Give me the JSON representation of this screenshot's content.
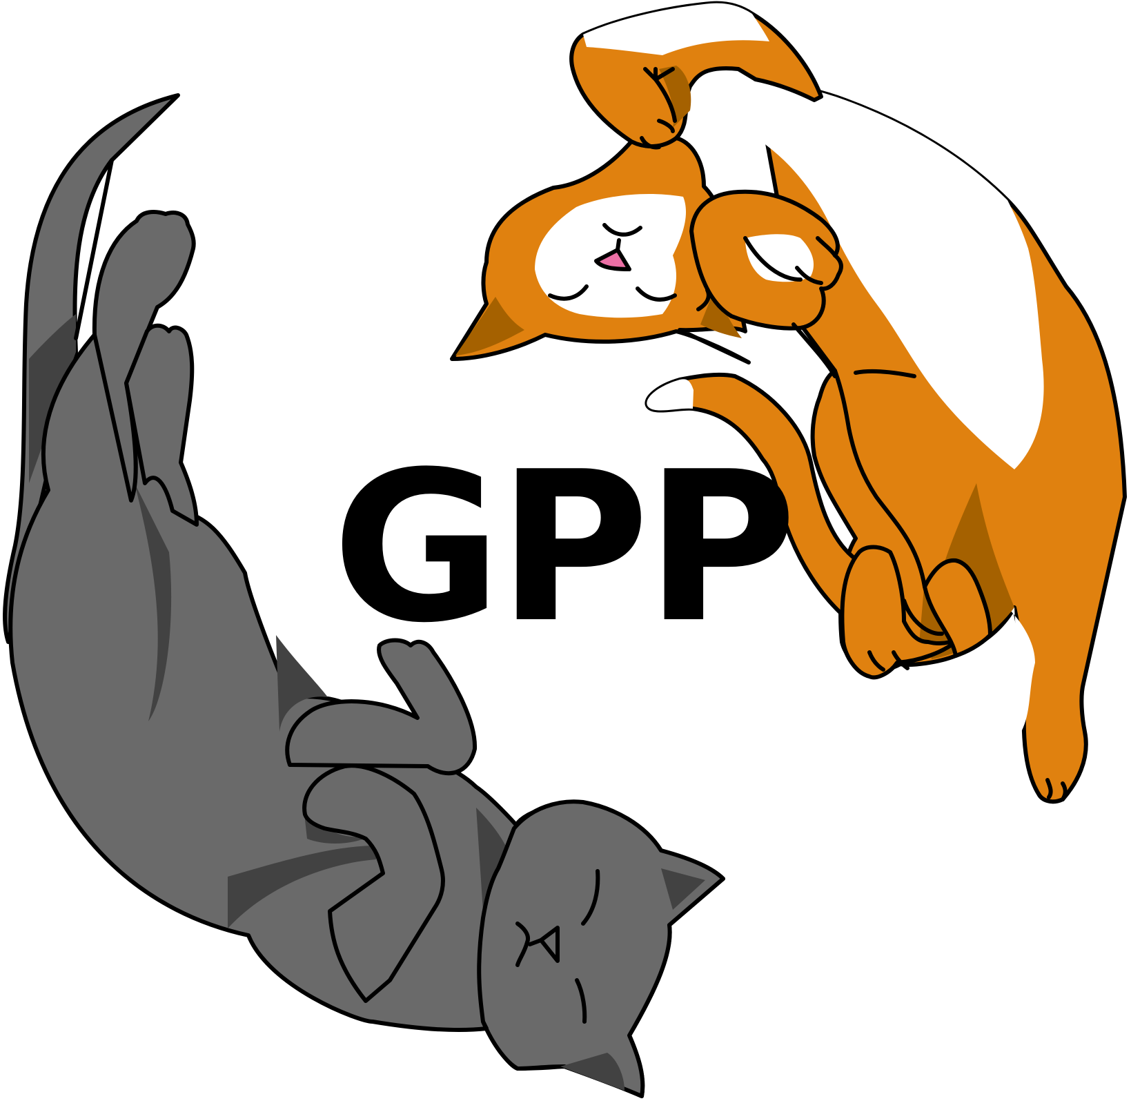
{
  "logo": {
    "text": "GPP",
    "colors": {
      "orange_cat": "#e0810f",
      "orange_cat_shade": "#a56100",
      "white_fur": "#ffffff",
      "gray_cat": "#6a6a6a",
      "gray_cat_shade": "#424242",
      "outline": "#000000",
      "nose": "#ec6fa5",
      "text": "#000000"
    }
  }
}
